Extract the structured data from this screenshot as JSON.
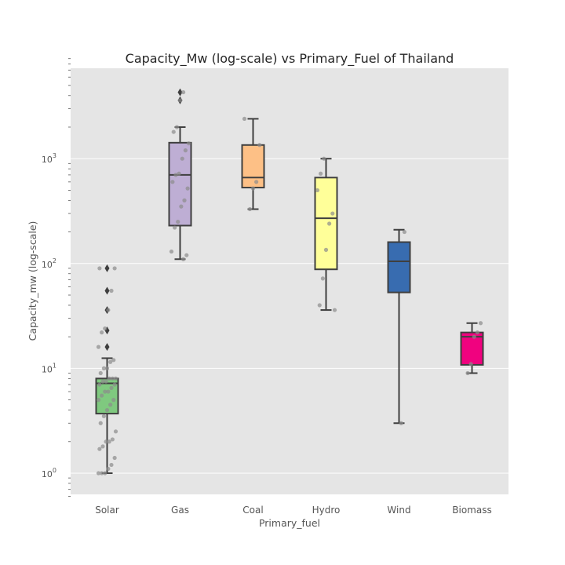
{
  "chart_data": {
    "type": "box",
    "title": "Capacity_Mw (log-scale) vs  Primary_Fuel of Thailand",
    "xlabel": "Primary_fuel",
    "ylabel": "Capacity_mw (log-scale)",
    "yscale": "log",
    "ylim": [
      0.6,
      9000
    ],
    "grid": true,
    "background": "#e5e5e5",
    "y_ticks": [
      {
        "base": "10",
        "exp": "0",
        "value": 1
      },
      {
        "base": "10",
        "exp": "1",
        "value": 10
      },
      {
        "base": "10",
        "exp": "2",
        "value": 100
      },
      {
        "base": "10",
        "exp": "3",
        "value": 1000
      }
    ],
    "categories": [
      "Solar",
      "Gas",
      "Coal",
      "Hydro",
      "Wind",
      "Biomass"
    ],
    "boxes": [
      {
        "name": "Solar",
        "color": "#7fc97f",
        "whislo": 1,
        "q1": 3.7,
        "med": 7.2,
        "q3": 8,
        "whishi": 12.5,
        "fliers": [
          16,
          23,
          36,
          55,
          90
        ],
        "points": [
          1,
          1,
          1,
          1.1,
          1.2,
          1.4,
          1.7,
          1.8,
          2,
          2,
          2.1,
          2.5,
          3,
          3.5,
          4,
          4.5,
          5,
          5,
          5.5,
          6,
          6,
          6.5,
          7,
          7,
          7.5,
          7.5,
          8,
          8,
          8,
          9,
          10,
          10,
          11.5,
          12,
          16,
          22,
          24,
          36,
          55,
          90,
          90
        ]
      },
      {
        "name": "Gas",
        "color": "#beaed4",
        "whislo": 110,
        "q1": 230,
        "med": 700,
        "q3": 1420,
        "whishi": 2000,
        "fliers": [
          3600,
          4300
        ],
        "points": [
          110,
          120,
          130,
          220,
          250,
          350,
          400,
          520,
          600,
          700,
          720,
          1000,
          1200,
          1400,
          1800,
          2000,
          3600,
          4300
        ]
      },
      {
        "name": "Coal",
        "color": "#fdc086",
        "whislo": 330,
        "q1": 530,
        "med": 660,
        "q3": 1350,
        "whishi": 2400,
        "fliers": [],
        "points": [
          330,
          520,
          600,
          1350,
          2400
        ]
      },
      {
        "name": "Hydro",
        "color": "#ffff99",
        "whislo": 36,
        "q1": 88,
        "med": 270,
        "q3": 660,
        "whishi": 1000,
        "fliers": [],
        "points": [
          36,
          40,
          72,
          135,
          240,
          300,
          500,
          720,
          1000
        ]
      },
      {
        "name": "Wind",
        "color": "#386cb0",
        "whislo": 3,
        "q1": 53,
        "med": 105,
        "q3": 160,
        "whishi": 210,
        "fliers": [],
        "points": [
          3,
          200
        ]
      },
      {
        "name": "Biomass",
        "color": "#f0027f",
        "whislo": 9,
        "q1": 10.8,
        "med": 20,
        "q3": 22,
        "whishi": 27,
        "fliers": [],
        "points": [
          9,
          11,
          20,
          22,
          27
        ]
      }
    ]
  }
}
